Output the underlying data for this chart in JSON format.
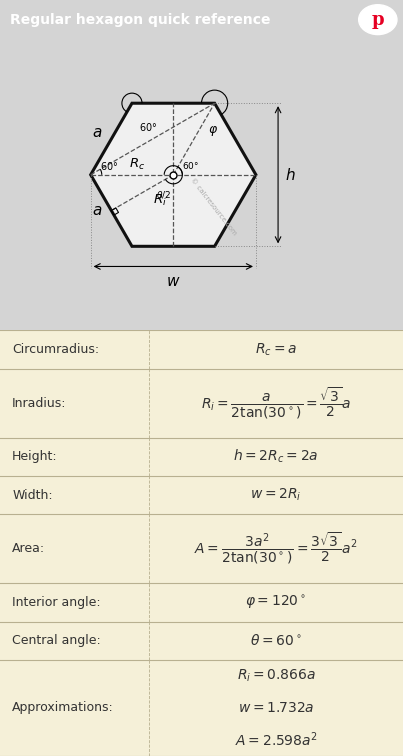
{
  "title": "Regular hexagon quick reference",
  "title_bg": "#636363",
  "title_fg": "#ffffff",
  "pinterest_color": "#e60023",
  "diagram_bg": "#d4d4d4",
  "table_row_bg": "#f5f0d8",
  "table_alt_bg": "#ece7c8",
  "table_border": "#b8b090",
  "hex_fill": "#f0f0f0",
  "hex_stroke": "#111111",
  "dashed_color": "#555555",
  "dot_color": "#888888",
  "rows": [
    {
      "label": "Circumradius:",
      "formula": "$R_c = a$",
      "tall": false
    },
    {
      "label": "Inradius:",
      "formula": "$R_i = \\dfrac{a}{2\\tan(30^\\circ)} = \\dfrac{\\sqrt{3}}{2}a$",
      "tall": true
    },
    {
      "label": "Height:",
      "formula": "$h = 2R_c = 2a$",
      "tall": false
    },
    {
      "label": "Width:",
      "formula": "$w = 2R_i$",
      "tall": false
    },
    {
      "label": "Area:",
      "formula": "$A = \\dfrac{3a^2}{2\\tan(30^\\circ)} = \\dfrac{3\\sqrt{3}}{2}a^2$",
      "tall": true
    },
    {
      "label": "Interior angle:",
      "formula": "$\\varphi = 120^\\circ$",
      "tall": false
    },
    {
      "label": "Central angle:",
      "formula": "$\\theta = 60^\\circ$",
      "tall": false
    },
    {
      "label": "Approximations:",
      "formulas": [
        "$R_i = 0.866a$",
        "$w = 1.732a$",
        "$A = 2.598a^2$"
      ],
      "tall": true
    }
  ],
  "col_split": 0.37
}
